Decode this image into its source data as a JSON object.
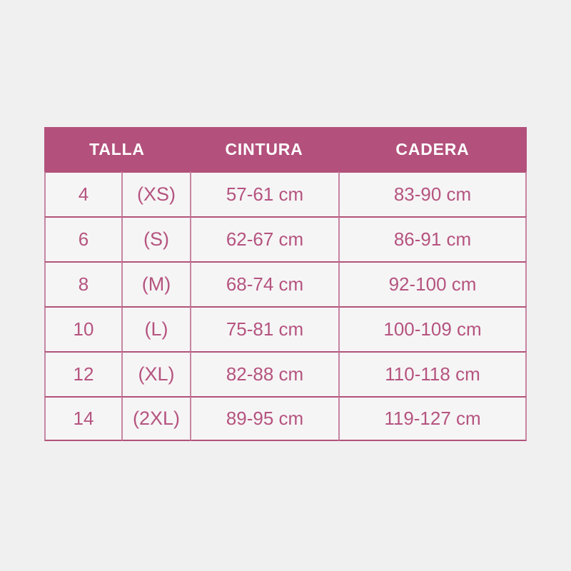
{
  "chart_data": {
    "type": "table",
    "title": "",
    "columns": [
      "TALLA",
      "CINTURA",
      "CADERA"
    ],
    "rows": [
      {
        "talla_number": "4",
        "talla_letter": "(XS)",
        "cintura": "57-61 cm",
        "cadera": "83-90 cm"
      },
      {
        "talla_number": "6",
        "talla_letter": "(S)",
        "cintura": "62-67 cm",
        "cadera": "86-91 cm"
      },
      {
        "talla_number": "8",
        "talla_letter": "(M)",
        "cintura": "68-74 cm",
        "cadera": "92-100 cm"
      },
      {
        "talla_number": "10",
        "talla_letter": "(L)",
        "cintura": "75-81 cm",
        "cadera": "100-109 cm"
      },
      {
        "talla_number": "12",
        "talla_letter": "(XL)",
        "cintura": "82-88 cm",
        "cadera": "110-118 cm"
      },
      {
        "talla_number": "14",
        "talla_letter": "(2XL)",
        "cintura": "89-95 cm",
        "cadera": "119-127 cm"
      }
    ],
    "layout_hints": {
      "header_colspan_first_column": 2,
      "grid": "on",
      "legend": "none"
    }
  },
  "colors": {
    "page_background": "#f1f0f1",
    "header_background": "#b3517c",
    "header_text": "#ffffff",
    "body_text": "#b5547f",
    "cell_background": "#f6f5f6",
    "border_horizontal": "#b25379",
    "border_vertical": "#c585a2"
  }
}
